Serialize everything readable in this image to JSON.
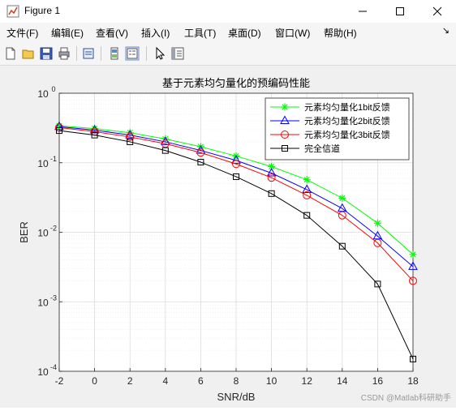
{
  "window": {
    "title": "Figure 1"
  },
  "menus": [
    "文件(F)",
    "编辑(E)",
    "查看(V)",
    "插入(I)",
    "工具(T)",
    "桌面(D)",
    "窗口(W)",
    "帮助(H)"
  ],
  "menu_overflow": "↘",
  "toolbar": [
    "new-file-icon",
    "open-folder-icon",
    "save-icon",
    "print-icon",
    "print-preview-icon",
    "link-plot-icon",
    "insert-legend-icon",
    "pointer-icon",
    "property-editor-icon"
  ],
  "watermark": "CSDN @Matlab科研助手",
  "colors": {
    "s1": "#00ff00",
    "s2": "#0000ff",
    "s3": "#ff0000",
    "s4": "#000000",
    "grid": "#dcdcdc"
  },
  "chart_data": {
    "type": "line",
    "title": "基于元素均匀量化的预编码性能",
    "xlabel": "SNR/dB",
    "ylabel": "BER",
    "xlim": [
      -2,
      18
    ],
    "ylim": [
      0.0001,
      1
    ],
    "yscale": "log",
    "grid": true,
    "legend_position": "top-right",
    "x": [
      -2,
      0,
      2,
      4,
      6,
      8,
      10,
      12,
      14,
      16,
      18
    ],
    "xticks": [
      "-2",
      "0",
      "2",
      "4",
      "6",
      "8",
      "10",
      "12",
      "14",
      "16",
      "18"
    ],
    "yticks": [
      {
        "base": "10",
        "exp": "0",
        "value": 1
      },
      {
        "base": "10",
        "exp": "-1",
        "value": 0.1
      },
      {
        "base": "10",
        "exp": "-2",
        "value": 0.01
      },
      {
        "base": "10",
        "exp": "-3",
        "value": 0.001
      },
      {
        "base": "10",
        "exp": "-4",
        "value": 0.0001
      }
    ],
    "series": [
      {
        "name": "元素均匀量化1bit反馈",
        "marker": "star",
        "color": "#00ff00",
        "values": [
          0.34,
          0.31,
          0.27,
          0.22,
          0.17,
          0.125,
          0.088,
          0.057,
          0.031,
          0.0135,
          0.0048
        ]
      },
      {
        "name": "元素均匀量化2bit反馈",
        "marker": "triangle",
        "color": "#0000ff",
        "values": [
          0.33,
          0.295,
          0.25,
          0.2,
          0.15,
          0.108,
          0.071,
          0.041,
          0.022,
          0.0088,
          0.0032
        ]
      },
      {
        "name": "元素均匀量化3bit反馈",
        "marker": "circle",
        "color": "#ff0000",
        "values": [
          0.32,
          0.28,
          0.235,
          0.188,
          0.14,
          0.096,
          0.061,
          0.034,
          0.0175,
          0.007,
          0.002
        ]
      },
      {
        "name": "完全信道",
        "marker": "square",
        "color": "#000000",
        "values": [
          0.29,
          0.25,
          0.2,
          0.15,
          0.102,
          0.063,
          0.036,
          0.0175,
          0.0063,
          0.0018,
          0.00015
        ]
      }
    ]
  }
}
